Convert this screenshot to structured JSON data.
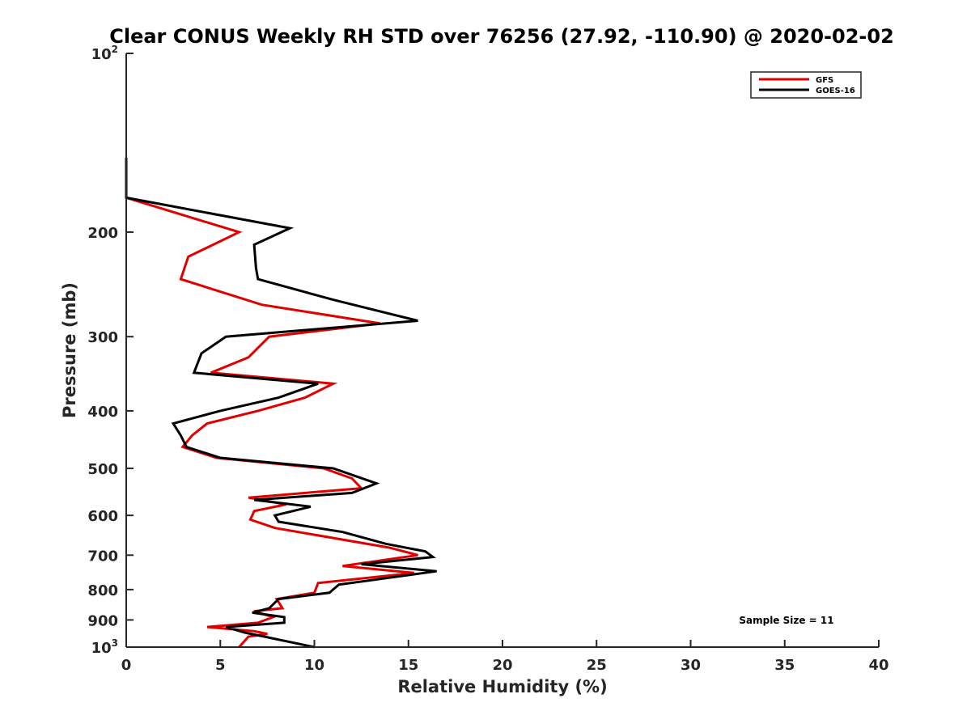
{
  "chart_data": {
    "type": "line",
    "title": "Clear CONUS Weekly RH STD over 76256 (27.92, -110.90) @ 2020-02-02",
    "xlabel": "Relative Humidity (%)",
    "ylabel": "Pressure (mb)",
    "xlim": [
      0,
      40
    ],
    "ylim": [
      1000,
      100
    ],
    "yscale": "log",
    "x_ticks": [
      0,
      5,
      10,
      15,
      20,
      25,
      30,
      35,
      40
    ],
    "x_tick_labels": [
      "0",
      "5",
      "10",
      "15",
      "20",
      "25",
      "30",
      "35",
      "40"
    ],
    "y_ticks": [
      {
        "value": 100,
        "base": "10",
        "exp": "2"
      },
      {
        "value": 200,
        "label": "200"
      },
      {
        "value": 300,
        "label": "300"
      },
      {
        "value": 400,
        "label": "400"
      },
      {
        "value": 500,
        "label": "500"
      },
      {
        "value": 600,
        "label": "600"
      },
      {
        "value": 700,
        "label": "700"
      },
      {
        "value": 800,
        "label": "800"
      },
      {
        "value": 900,
        "label": "900"
      },
      {
        "value": 1000,
        "base": "10",
        "exp": "3"
      }
    ],
    "legend": {
      "position": "top-right",
      "entries": [
        "GFS",
        "GOES-16"
      ]
    },
    "annotation": "Sample Size = 11",
    "series": [
      {
        "name": "GFS",
        "color": "#e00000",
        "points": [
          [
            0.0,
            150
          ],
          [
            0.0,
            175
          ],
          [
            6.0,
            200
          ],
          [
            3.3,
            220
          ],
          [
            2.9,
            240
          ],
          [
            7.2,
            265
          ],
          [
            13.5,
            285
          ],
          [
            7.6,
            300
          ],
          [
            6.5,
            325
          ],
          [
            4.5,
            345
          ],
          [
            11.0,
            360
          ],
          [
            9.5,
            380
          ],
          [
            7.0,
            400
          ],
          [
            4.3,
            420
          ],
          [
            3.5,
            440
          ],
          [
            3.0,
            460
          ],
          [
            4.8,
            480
          ],
          [
            10.5,
            500
          ],
          [
            12.0,
            520
          ],
          [
            12.5,
            540
          ],
          [
            6.5,
            560
          ],
          [
            8.5,
            575
          ],
          [
            6.8,
            590
          ],
          [
            6.6,
            610
          ],
          [
            7.9,
            630
          ],
          [
            14.0,
            680
          ],
          [
            15.5,
            700
          ],
          [
            11.5,
            730
          ],
          [
            15.3,
            750
          ],
          [
            10.2,
            780
          ],
          [
            10.0,
            810
          ],
          [
            8.0,
            830
          ],
          [
            8.3,
            860
          ],
          [
            6.8,
            870
          ],
          [
            7.8,
            890
          ],
          [
            7.0,
            910
          ],
          [
            4.3,
            925
          ],
          [
            6.8,
            940
          ],
          [
            7.5,
            950
          ],
          [
            6.5,
            960
          ],
          [
            6.0,
            1000
          ]
        ]
      },
      {
        "name": "GOES-16",
        "color": "#000000",
        "points": [
          [
            0.0,
            150
          ],
          [
            0.0,
            175
          ],
          [
            8.7,
            197
          ],
          [
            6.8,
            210
          ],
          [
            6.9,
            230
          ],
          [
            7.0,
            240
          ],
          [
            11.0,
            260
          ],
          [
            15.5,
            282
          ],
          [
            5.3,
            300
          ],
          [
            4.0,
            320
          ],
          [
            3.6,
            345
          ],
          [
            10.2,
            360
          ],
          [
            8.1,
            380
          ],
          [
            5.0,
            400
          ],
          [
            2.5,
            420
          ],
          [
            2.9,
            440
          ],
          [
            3.2,
            460
          ],
          [
            5.0,
            480
          ],
          [
            11.0,
            500
          ],
          [
            13.3,
            530
          ],
          [
            12.0,
            550
          ],
          [
            6.8,
            565
          ],
          [
            9.8,
            580
          ],
          [
            7.9,
            600
          ],
          [
            8.1,
            615
          ],
          [
            11.5,
            640
          ],
          [
            13.8,
            670
          ],
          [
            15.9,
            690
          ],
          [
            16.3,
            705
          ],
          [
            12.5,
            725
          ],
          [
            16.5,
            745
          ],
          [
            11.3,
            785
          ],
          [
            10.8,
            810
          ],
          [
            8.1,
            830
          ],
          [
            7.6,
            860
          ],
          [
            6.7,
            875
          ],
          [
            8.4,
            890
          ],
          [
            8.4,
            910
          ],
          [
            5.3,
            925
          ],
          [
            6.3,
            945
          ],
          [
            10.0,
            1000
          ]
        ]
      }
    ]
  }
}
